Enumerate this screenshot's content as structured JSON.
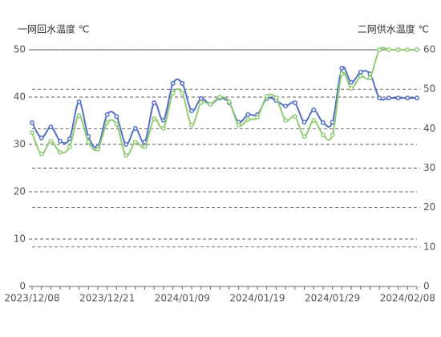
{
  "chart_data": {
    "type": "line",
    "y_label": "一网回水温度 ℃",
    "y2_label": "二网供水温度 ℃",
    "categories": [
      "2023/12/08",
      null,
      null,
      null,
      null,
      null,
      null,
      null,
      "2023/12/21",
      null,
      null,
      null,
      null,
      null,
      null,
      null,
      "2024/01/09",
      null,
      null,
      null,
      null,
      null,
      null,
      null,
      "2024/01/19",
      null,
      null,
      null,
      null,
      null,
      null,
      null,
      "2024/01/29",
      null,
      null,
      null,
      null,
      null,
      null,
      null,
      "2024/02/08",
      null
    ],
    "ylim": [
      0,
      50
    ],
    "yticks": [
      0,
      10,
      20,
      30,
      40,
      50
    ],
    "y2lim": [
      0,
      60
    ],
    "y2ticks": [
      0,
      10,
      20,
      30,
      40,
      50,
      60
    ],
    "grid": true,
    "smooth": true,
    "series": [
      {
        "color": "#5470c6",
        "axis": "y",
        "values": [
          34.6,
          31.4,
          33.7,
          30.7,
          31.2,
          39.0,
          31.7,
          29.5,
          36.3,
          35.9,
          30.0,
          33.4,
          30.5,
          38.8,
          35.1,
          42.9,
          42.9,
          37.1,
          39.7,
          38.5,
          39.8,
          38.8,
          34.7,
          36.3,
          36.3,
          39.7,
          39.3,
          38.1,
          38.8,
          34.7,
          37.3,
          34.6,
          34.7,
          46.1,
          43.1,
          45.3,
          44.9,
          39.8,
          39.8,
          39.8,
          39.8,
          39.8
        ]
      },
      {
        "color": "#91cc75",
        "axis": "y2",
        "values": [
          39.0,
          33.6,
          36.8,
          34.0,
          35.4,
          43.3,
          36.6,
          34.8,
          41.5,
          41.1,
          33.2,
          36.6,
          35.4,
          42.5,
          40.1,
          49.0,
          49.0,
          40.9,
          46.6,
          46.2,
          48.0,
          46.8,
          40.9,
          42.3,
          42.9,
          48.2,
          47.8,
          42.1,
          43.1,
          38.0,
          42.1,
          38.4,
          38.4,
          53.9,
          50.2,
          53.3,
          52.9,
          60,
          60,
          60,
          60,
          60
        ]
      }
    ]
  }
}
